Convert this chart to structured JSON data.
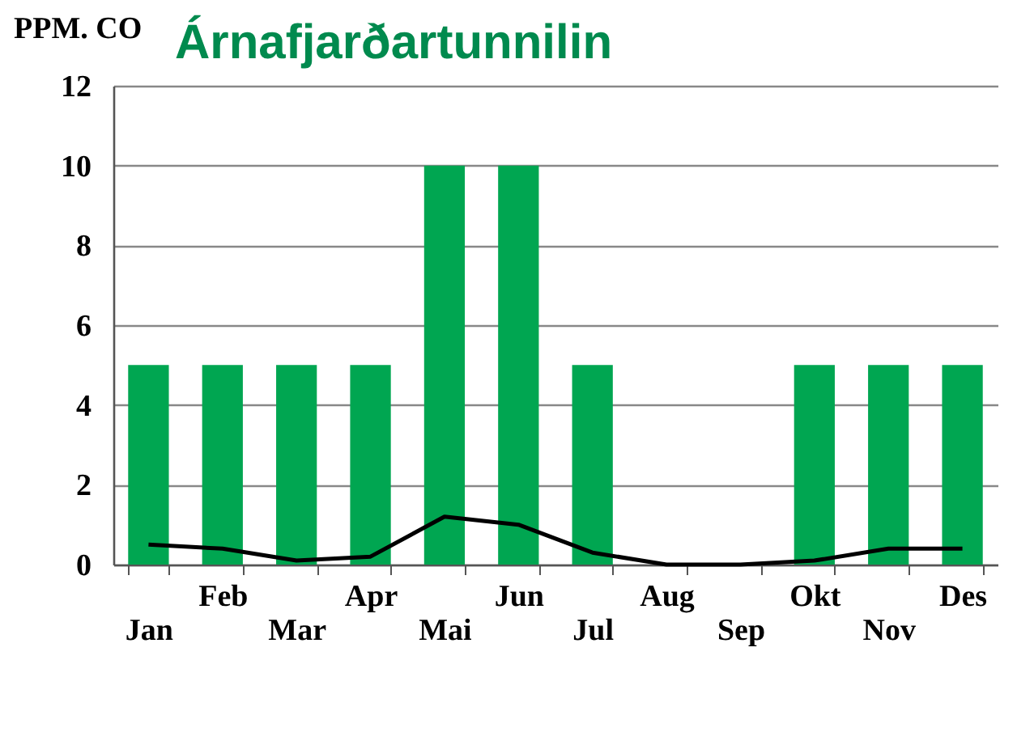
{
  "chart_data": {
    "type": "bar",
    "title": "Árnafjarðartunnilin",
    "ylabel": "PPM. CO",
    "categories": [
      "Jan",
      "Feb",
      "Mar",
      "Apr",
      "Mai",
      "Jun",
      "Jul",
      "Aug",
      "Sep",
      "Okt",
      "Nov",
      "Des"
    ],
    "series": [
      {
        "color": "#00a651",
        "values": [
          5,
          5,
          5,
          5,
          10,
          10,
          5,
          0,
          0,
          5,
          5,
          5
        ]
      },
      {
        "type": "line",
        "color": "#000000",
        "values": [
          0.5,
          0.4,
          0.1,
          0.2,
          1.2,
          1.0,
          0.3,
          0,
          0,
          0.1,
          0.4,
          0.4
        ]
      }
    ],
    "ylim": [
      0,
      12
    ],
    "yticks": [
      0,
      2,
      4,
      6,
      8,
      10,
      12
    ],
    "grid": "y",
    "legend": false,
    "line_style": "solid",
    "marker": "none"
  }
}
